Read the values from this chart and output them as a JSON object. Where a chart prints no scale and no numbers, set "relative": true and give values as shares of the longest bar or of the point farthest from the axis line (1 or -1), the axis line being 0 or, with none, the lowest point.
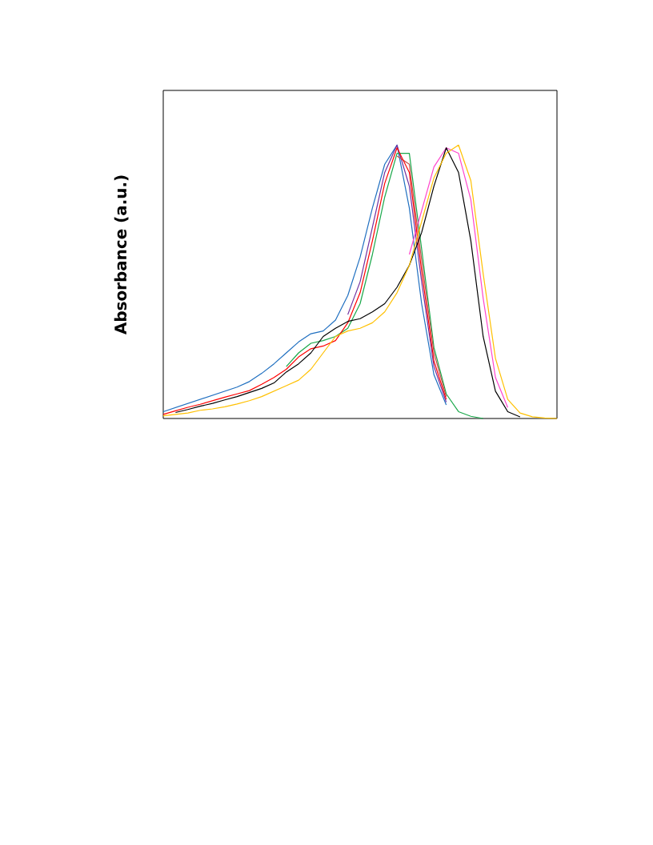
{
  "chart_data": {
    "type": "line",
    "ylabel": "Absorbance (a.u.)",
    "relative": true,
    "categories": [
      null,
      null,
      null,
      null,
      null,
      null,
      null,
      null,
      null,
      null,
      null,
      null,
      null,
      null,
      null,
      null,
      null,
      null,
      null,
      null,
      null,
      null,
      null,
      null,
      null,
      null,
      null,
      null,
      null,
      null,
      null,
      null,
      null
    ],
    "series": [
      {
        "color": "#1f6fc0",
        "values": [
          0.025,
          0.04,
          0.055,
          0.07,
          0.085,
          0.1,
          0.115,
          0.135,
          0.165,
          0.2,
          0.24,
          0.28,
          0.31,
          0.32,
          0.36,
          0.45,
          0.59,
          0.77,
          0.93,
          1.0,
          0.77,
          0.42,
          0.16,
          0.05,
          null,
          null,
          null,
          null,
          null,
          null,
          null,
          null,
          null
        ]
      },
      {
        "color": "#7030a0",
        "values": [
          null,
          null,
          null,
          null,
          null,
          null,
          null,
          null,
          null,
          null,
          null,
          null,
          null,
          null,
          null,
          0.38,
          0.5,
          0.7,
          0.9,
          1.0,
          0.85,
          0.5,
          0.19,
          0.06,
          null,
          null,
          null,
          null,
          null,
          null,
          null,
          null,
          null
        ]
      },
      {
        "color": "#1aa84a",
        "values": [
          null,
          null,
          null,
          null,
          null,
          null,
          null,
          null,
          null,
          null,
          0.19,
          0.24,
          0.275,
          0.285,
          0.3,
          0.33,
          0.42,
          0.6,
          0.81,
          0.97,
          0.97,
          0.62,
          0.26,
          0.09,
          0.025,
          0.008,
          0,
          null,
          null,
          null,
          null,
          null,
          null
        ]
      },
      {
        "color": "#ff44cc",
        "values": [
          null,
          null,
          null,
          null,
          null,
          null,
          null,
          null,
          null,
          null,
          null,
          null,
          null,
          null,
          null,
          null,
          null,
          null,
          null,
          null,
          0.6,
          0.76,
          0.92,
          0.99,
          0.97,
          0.8,
          0.44,
          0.15,
          0.04,
          null,
          null,
          null,
          null
        ]
      },
      {
        "color": "#c0504d",
        "values": [
          null,
          null,
          null,
          null,
          null,
          null,
          null,
          null,
          null,
          null,
          null,
          null,
          null,
          null,
          null,
          null,
          null,
          null,
          null,
          0.96,
          0.93,
          0.58,
          0.24,
          0.08,
          null,
          null,
          null,
          null,
          null,
          null,
          null,
          null,
          null
        ]
      },
      {
        "color": "#ff0000",
        "values": [
          0.015,
          0.028,
          0.041,
          0.052,
          0.065,
          0.078,
          0.09,
          0.102,
          0.125,
          0.15,
          0.18,
          0.225,
          0.255,
          0.265,
          0.285,
          0.35,
          0.46,
          0.65,
          0.86,
          0.99,
          0.9,
          0.54,
          0.21,
          0.07,
          null,
          null,
          null,
          null,
          null,
          null,
          null,
          null,
          null
        ]
      },
      {
        "color": "#000000",
        "values": [
          null,
          0.022,
          0.033,
          0.045,
          0.055,
          0.068,
          0.08,
          0.095,
          0.11,
          0.13,
          0.17,
          0.2,
          0.24,
          0.3,
          0.33,
          0.355,
          0.365,
          0.39,
          0.42,
          0.48,
          0.56,
          0.68,
          0.85,
          0.99,
          0.9,
          0.65,
          0.3,
          0.1,
          0.025,
          0.006,
          null,
          null,
          null
        ]
      },
      {
        "color": "#ffc000",
        "values": [
          0.01,
          0.015,
          0.02,
          0.03,
          0.035,
          0.043,
          0.053,
          0.065,
          0.08,
          0.1,
          0.12,
          0.14,
          0.18,
          0.24,
          0.3,
          0.32,
          0.33,
          0.35,
          0.39,
          0.46,
          0.56,
          0.72,
          0.88,
          0.97,
          1.0,
          0.87,
          0.53,
          0.22,
          0.07,
          0.02,
          0.006,
          0.002,
          0
        ]
      }
    ]
  }
}
